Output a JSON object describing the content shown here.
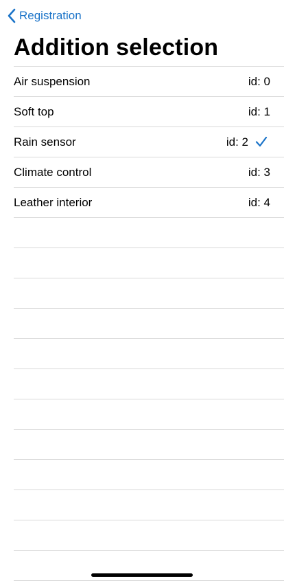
{
  "nav": {
    "back_label": "Registration"
  },
  "title": "Addition selection",
  "items": [
    {
      "label": "Air suspension",
      "detail": "id: 0",
      "selected": false
    },
    {
      "label": "Soft top",
      "detail": "id: 1",
      "selected": false
    },
    {
      "label": "Rain sensor",
      "detail": "id: 2",
      "selected": true
    },
    {
      "label": "Climate control",
      "detail": "id: 3",
      "selected": false
    },
    {
      "label": "Leather interior",
      "detail": "id: 4",
      "selected": false
    }
  ],
  "colors": {
    "accent": "#1a73c8",
    "separator": "#d9d9d9"
  },
  "icons": {
    "back": "chevron-left-icon",
    "selected": "checkmark-icon"
  }
}
